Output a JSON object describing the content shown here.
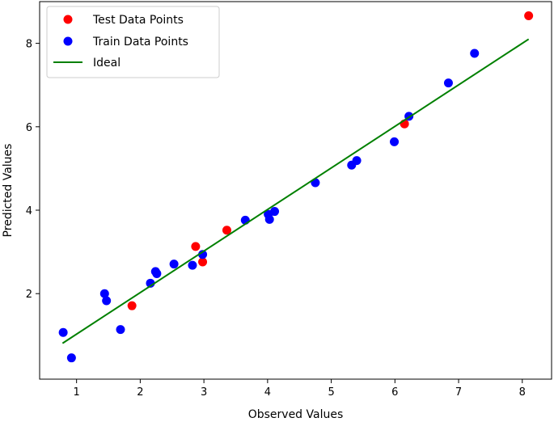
{
  "chart_data": {
    "type": "scatter",
    "title": "",
    "xlabel": "Observed Values",
    "ylabel": "Predicted Values",
    "xlim": [
      0.42,
      8.46
    ],
    "ylim": [
      -0.05,
      9.0
    ],
    "xticks": [
      1,
      2,
      3,
      4,
      5,
      6,
      7,
      8
    ],
    "yticks": [
      2,
      4,
      6,
      8
    ],
    "grid": false,
    "legend_position": "top-left",
    "series": [
      {
        "name": "Test Data Points",
        "kind": "scatter",
        "color": "#ff0000",
        "points": [
          [
            1.87,
            1.71
          ],
          [
            2.87,
            3.13
          ],
          [
            2.98,
            2.76
          ],
          [
            3.36,
            3.52
          ],
          [
            6.15,
            6.07
          ],
          [
            8.1,
            8.66
          ]
        ]
      },
      {
        "name": "Train Data Points",
        "kind": "scatter",
        "color": "#0000ff",
        "points": [
          [
            0.79,
            1.07
          ],
          [
            0.92,
            0.46
          ],
          [
            1.44,
            2.0
          ],
          [
            1.47,
            1.83
          ],
          [
            1.69,
            1.14
          ],
          [
            2.16,
            2.25
          ],
          [
            2.24,
            2.53
          ],
          [
            2.26,
            2.48
          ],
          [
            2.53,
            2.71
          ],
          [
            2.82,
            2.68
          ],
          [
            2.98,
            2.94
          ],
          [
            3.65,
            3.76
          ],
          [
            4.01,
            3.9
          ],
          [
            4.03,
            3.78
          ],
          [
            4.11,
            3.97
          ],
          [
            4.75,
            4.66
          ],
          [
            5.32,
            5.08
          ],
          [
            5.4,
            5.19
          ],
          [
            5.99,
            5.64
          ],
          [
            6.22,
            6.25
          ],
          [
            6.84,
            7.05
          ],
          [
            7.25,
            7.76
          ]
        ]
      },
      {
        "name": "Ideal",
        "kind": "line",
        "color": "#008000",
        "points": [
          [
            0.78,
            0.81
          ],
          [
            8.1,
            8.1
          ]
        ]
      }
    ]
  }
}
